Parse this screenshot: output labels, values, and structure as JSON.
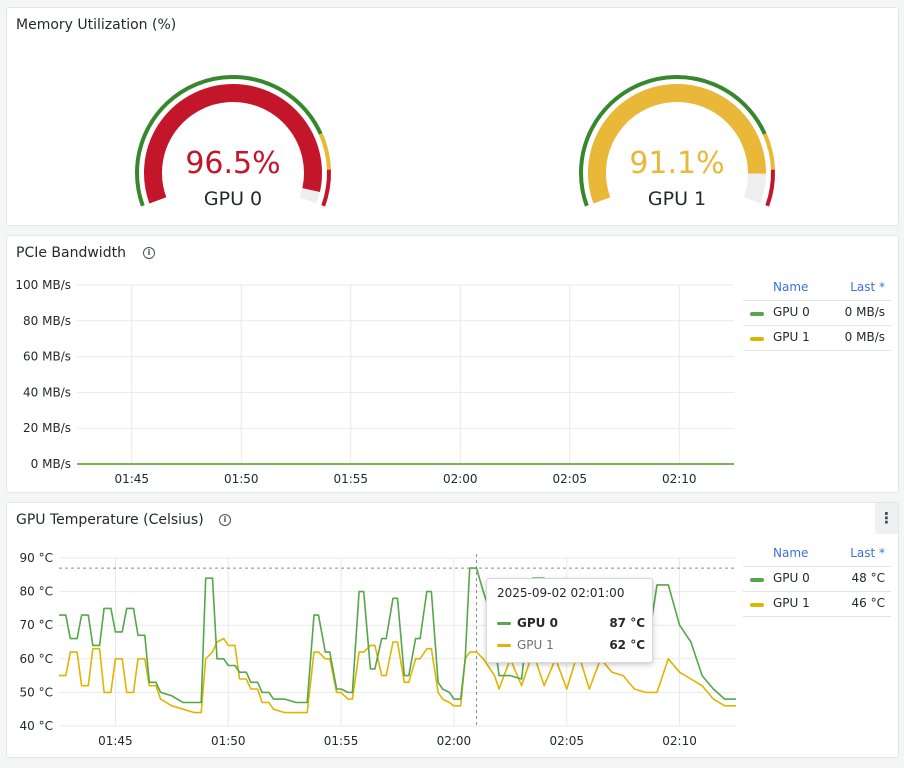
{
  "panels": {
    "memory": {
      "title": "Memory Utilization (%)"
    },
    "pcie": {
      "title": "PCIe Bandwidth"
    },
    "temp": {
      "title": "GPU Temperature (Celsius)"
    }
  },
  "gauges": [
    {
      "label": "GPU 0",
      "value_text": "96.5%",
      "value": 96.5,
      "color": "#c4162a"
    },
    {
      "label": "GPU 1",
      "value_text": "91.1%",
      "value": 91.1,
      "color": "#eab839"
    }
  ],
  "threshold_colors": {
    "green": "#37872d",
    "yellow": "#eab839",
    "red": "#c4162a"
  },
  "legend_headers": {
    "name": "Name",
    "last": "Last *"
  },
  "pcie_legend": [
    {
      "name": "GPU 0",
      "last": "0 MB/s",
      "color": "#56a64b"
    },
    {
      "name": "GPU 1",
      "last": "0 MB/s",
      "color": "#e0b400"
    }
  ],
  "temp_legend": [
    {
      "name": "GPU 0",
      "last": "48 °C",
      "color": "#56a64b"
    },
    {
      "name": "GPU 1",
      "last": "46 °C",
      "color": "#e0b400"
    }
  ],
  "tooltip": {
    "time": "2025-09-02 02:01:00",
    "rows": [
      {
        "name": "GPU 0",
        "value": "87 °C",
        "color": "#56a64b"
      },
      {
        "name": "GPU 1",
        "value": "62 °C",
        "color": "#e0b400"
      }
    ]
  },
  "chart_data": [
    {
      "type": "line",
      "title": "PCIe Bandwidth",
      "x_ticks": [
        "01:45",
        "01:50",
        "01:55",
        "02:00",
        "02:05",
        "02:10"
      ],
      "y_ticks": [
        "0 MB/s",
        "20 MB/s",
        "40 MB/s",
        "60 MB/s",
        "80 MB/s",
        "100 MB/s"
      ],
      "ylim": [
        0,
        100
      ],
      "unit": "MB/s",
      "x_range_minutes": [
        102.5,
        132.5
      ],
      "series": [
        {
          "name": "GPU 0",
          "color": "#56a64b",
          "values": [
            [
              102.5,
              0
            ],
            [
              132.5,
              0
            ]
          ]
        },
        {
          "name": "GPU 1",
          "color": "#e0b400",
          "values": [
            [
              102.5,
              0
            ],
            [
              132.5,
              0
            ]
          ]
        }
      ]
    },
    {
      "type": "line",
      "title": "GPU Temperature (Celsius)",
      "x_ticks": [
        "01:45",
        "01:50",
        "01:55",
        "02:00",
        "02:05",
        "02:10"
      ],
      "y_ticks": [
        "40 °C",
        "50 °C",
        "60 °C",
        "70 °C",
        "80 °C",
        "90 °C"
      ],
      "ylim": [
        40,
        90
      ],
      "unit": "°C",
      "x_range_minutes": [
        102.5,
        132.5
      ],
      "crosshair_minute": 121,
      "crosshair_value": 87,
      "series": [
        {
          "name": "GPU 0",
          "color": "#56a64b",
          "values": [
            [
              102.5,
              73
            ],
            [
              102.8,
              73
            ],
            [
              103.0,
              66
            ],
            [
              103.3,
              66
            ],
            [
              103.5,
              73
            ],
            [
              103.8,
              73
            ],
            [
              104.0,
              64
            ],
            [
              104.3,
              64
            ],
            [
              104.5,
              75
            ],
            [
              104.8,
              75
            ],
            [
              105.0,
              68
            ],
            [
              105.3,
              68
            ],
            [
              105.5,
              75
            ],
            [
              105.8,
              75
            ],
            [
              106.0,
              67
            ],
            [
              106.3,
              67
            ],
            [
              106.5,
              53
            ],
            [
              106.8,
              53
            ],
            [
              107.0,
              50
            ],
            [
              107.5,
              49
            ],
            [
              108.0,
              47
            ],
            [
              108.5,
              47
            ],
            [
              108.8,
              47
            ],
            [
              109.0,
              84
            ],
            [
              109.3,
              84
            ],
            [
              109.5,
              60
            ],
            [
              109.8,
              60
            ],
            [
              110.0,
              58
            ],
            [
              110.3,
              58
            ],
            [
              110.5,
              56
            ],
            [
              110.8,
              56
            ],
            [
              111.0,
              53
            ],
            [
              111.3,
              53
            ],
            [
              111.5,
              50
            ],
            [
              111.8,
              50
            ],
            [
              112.0,
              48
            ],
            [
              112.5,
              48
            ],
            [
              113.0,
              47
            ],
            [
              113.5,
              47
            ],
            [
              113.8,
              73
            ],
            [
              114.0,
              73
            ],
            [
              114.3,
              62
            ],
            [
              114.5,
              62
            ],
            [
              114.8,
              51
            ],
            [
              115.0,
              51
            ],
            [
              115.3,
              50
            ],
            [
              115.5,
              50
            ],
            [
              115.8,
              80
            ],
            [
              116.0,
              80
            ],
            [
              116.3,
              57
            ],
            [
              116.5,
              57
            ],
            [
              116.8,
              66
            ],
            [
              117.0,
              66
            ],
            [
              117.3,
              78
            ],
            [
              117.5,
              78
            ],
            [
              117.8,
              55
            ],
            [
              118.0,
              55
            ],
            [
              118.3,
              66
            ],
            [
              118.5,
              66
            ],
            [
              118.8,
              80
            ],
            [
              119.0,
              80
            ],
            [
              119.3,
              53
            ],
            [
              119.5,
              51
            ],
            [
              119.8,
              50
            ],
            [
              120.0,
              48
            ],
            [
              120.3,
              48
            ],
            [
              120.5,
              60
            ],
            [
              120.7,
              87
            ],
            [
              121.0,
              87
            ],
            [
              121.3,
              80
            ],
            [
              121.5,
              76
            ],
            [
              121.8,
              65
            ],
            [
              122.0,
              55
            ],
            [
              122.5,
              55
            ],
            [
              123.0,
              54
            ],
            [
              123.5,
              84
            ],
            [
              124.0,
              84
            ],
            [
              124.5,
              75
            ],
            [
              125.0,
              70
            ],
            [
              125.5,
              62
            ],
            [
              126.0,
              62
            ],
            [
              126.5,
              65
            ],
            [
              127.0,
              82
            ],
            [
              127.5,
              82
            ],
            [
              128.0,
              65
            ],
            [
              128.5,
              60
            ],
            [
              129.0,
              82
            ],
            [
              129.5,
              82
            ],
            [
              130.0,
              70
            ],
            [
              130.5,
              65
            ],
            [
              131.0,
              55
            ],
            [
              131.5,
              51
            ],
            [
              132.0,
              48
            ],
            [
              132.5,
              48
            ]
          ]
        },
        {
          "name": "GPU 1",
          "color": "#e0b400",
          "values": [
            [
              102.5,
              55
            ],
            [
              102.8,
              55
            ],
            [
              103.0,
              62
            ],
            [
              103.3,
              62
            ],
            [
              103.5,
              52
            ],
            [
              103.8,
              52
            ],
            [
              104.0,
              63
            ],
            [
              104.3,
              63
            ],
            [
              104.5,
              50
            ],
            [
              104.8,
              50
            ],
            [
              105.0,
              60
            ],
            [
              105.3,
              60
            ],
            [
              105.5,
              50
            ],
            [
              105.8,
              50
            ],
            [
              106.0,
              60
            ],
            [
              106.3,
              60
            ],
            [
              106.5,
              52
            ],
            [
              106.8,
              52
            ],
            [
              107.0,
              48
            ],
            [
              107.5,
              46
            ],
            [
              108.0,
              45
            ],
            [
              108.5,
              44
            ],
            [
              108.8,
              44
            ],
            [
              109.0,
              60
            ],
            [
              109.3,
              62
            ],
            [
              109.5,
              65
            ],
            [
              109.8,
              66
            ],
            [
              110.0,
              64
            ],
            [
              110.3,
              64
            ],
            [
              110.5,
              54
            ],
            [
              110.8,
              54
            ],
            [
              111.0,
              51
            ],
            [
              111.3,
              51
            ],
            [
              111.5,
              47
            ],
            [
              111.8,
              47
            ],
            [
              112.0,
              45
            ],
            [
              112.5,
              44
            ],
            [
              113.0,
              44
            ],
            [
              113.5,
              44
            ],
            [
              113.8,
              62
            ],
            [
              114.0,
              62
            ],
            [
              114.3,
              60
            ],
            [
              114.5,
              60
            ],
            [
              114.8,
              50
            ],
            [
              115.0,
              50
            ],
            [
              115.3,
              48
            ],
            [
              115.5,
              48
            ],
            [
              115.8,
              62
            ],
            [
              116.0,
              62
            ],
            [
              116.3,
              64
            ],
            [
              116.5,
              64
            ],
            [
              116.8,
              55
            ],
            [
              117.0,
              55
            ],
            [
              117.3,
              65
            ],
            [
              117.5,
              65
            ],
            [
              117.8,
              53
            ],
            [
              118.0,
              53
            ],
            [
              118.3,
              60
            ],
            [
              118.5,
              60
            ],
            [
              118.8,
              63
            ],
            [
              119.0,
              63
            ],
            [
              119.3,
              50
            ],
            [
              119.5,
              48
            ],
            [
              119.8,
              47
            ],
            [
              120.0,
              46
            ],
            [
              120.3,
              46
            ],
            [
              120.5,
              60
            ],
            [
              120.7,
              62
            ],
            [
              121.0,
              62
            ],
            [
              121.3,
              60
            ],
            [
              121.5,
              58
            ],
            [
              121.8,
              55
            ],
            [
              122.0,
              51
            ],
            [
              122.5,
              60
            ],
            [
              123.0,
              52
            ],
            [
              123.5,
              62
            ],
            [
              124.0,
              52
            ],
            [
              124.5,
              60
            ],
            [
              125.0,
              51
            ],
            [
              125.5,
              62
            ],
            [
              126.0,
              51
            ],
            [
              126.5,
              60
            ],
            [
              127.0,
              56
            ],
            [
              127.5,
              55
            ],
            [
              128.0,
              51
            ],
            [
              128.5,
              50
            ],
            [
              129.0,
              50
            ],
            [
              129.5,
              60
            ],
            [
              130.0,
              56
            ],
            [
              130.5,
              54
            ],
            [
              131.0,
              52
            ],
            [
              131.5,
              48
            ],
            [
              132.0,
              46
            ],
            [
              132.5,
              46
            ]
          ]
        }
      ]
    }
  ]
}
